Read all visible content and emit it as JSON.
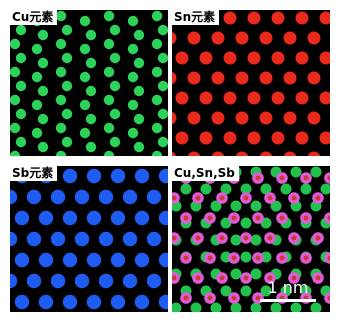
{
  "panels": [
    {
      "label": "Cu元素",
      "color": "#2bd35a",
      "pattern": "cu"
    },
    {
      "label": "Sn元素",
      "color": "#e8291b",
      "pattern": "sn"
    },
    {
      "label": "Sb元素",
      "color": "#1f5cf2",
      "pattern": "sb"
    },
    {
      "label": "Cu,Sn,Sb",
      "color": "#e05bd6",
      "pattern": "overlay",
      "scale_bar": "1 nm"
    }
  ]
}
